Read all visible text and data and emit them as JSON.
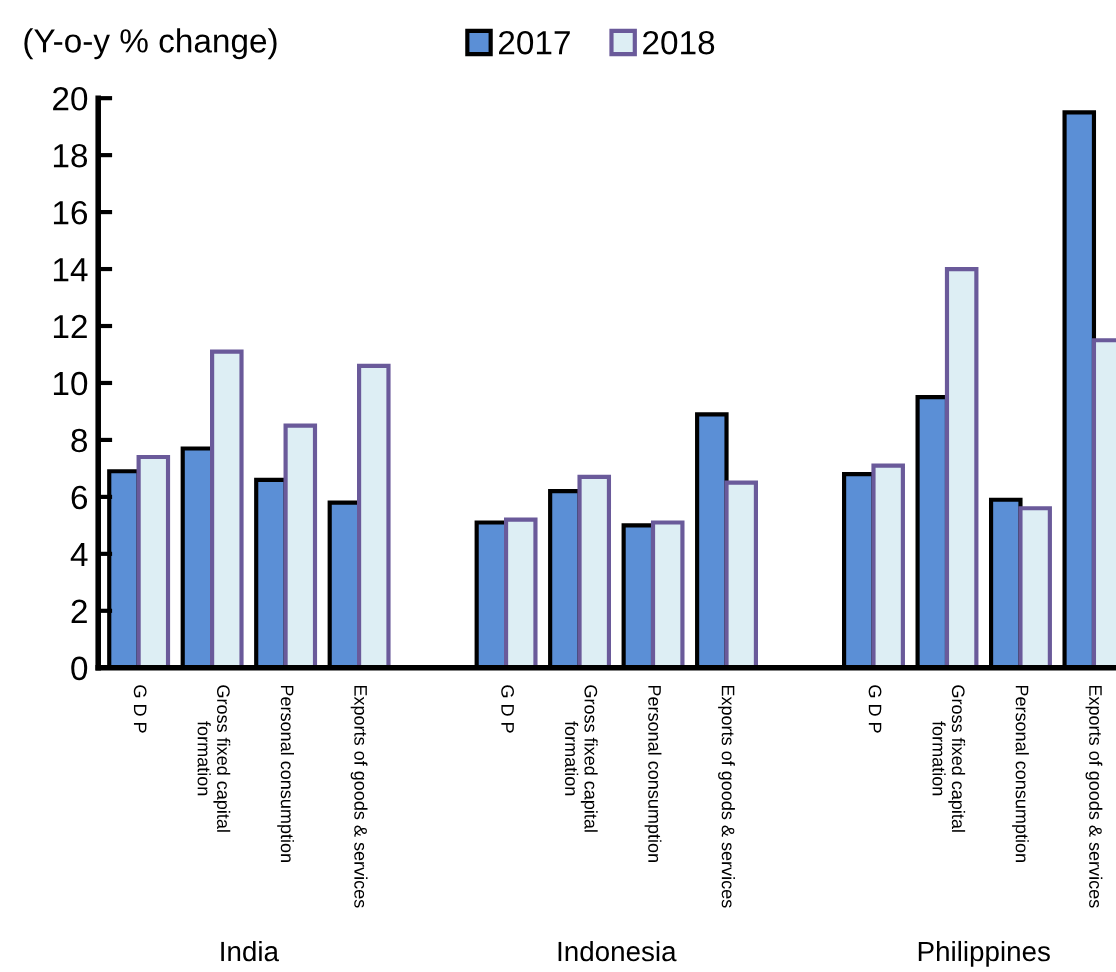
{
  "chart_data": {
    "type": "bar",
    "ylabel": "(Y-o-y % change)",
    "categories": [
      "G D P",
      "Gross fixed capital\nformation",
      "Personal consumption",
      "Exports of goods & services",
      null,
      "G D P",
      "Gross fixed capital\nformation",
      "Personal consumption",
      "Exports of goods & services",
      null,
      "G D P",
      "Gross fixed capital\nformation",
      "Personal consumption",
      "Exports of goods & services"
    ],
    "series": [
      {
        "name": "2017",
        "color": "#5b8fd6",
        "values": [
          6.9,
          7.7,
          6.6,
          5.8,
          null,
          5.1,
          6.2,
          5.0,
          8.9,
          null,
          6.8,
          9.5,
          5.9,
          19.5
        ]
      },
      {
        "name": "2018",
        "color": "#ddeef4",
        "values": [
          7.4,
          11.1,
          8.5,
          10.6,
          null,
          5.2,
          6.7,
          5.1,
          6.5,
          null,
          7.1,
          14.0,
          5.6,
          11.5
        ]
      }
    ],
    "annotations": [
      "India",
      "Indonesia",
      "Philippines"
    ],
    "ylim": [
      0,
      20
    ],
    "yticks": [
      0,
      2,
      4,
      6,
      8,
      10,
      12,
      14,
      16,
      18,
      20
    ],
    "grid": false,
    "legend": "top"
  }
}
